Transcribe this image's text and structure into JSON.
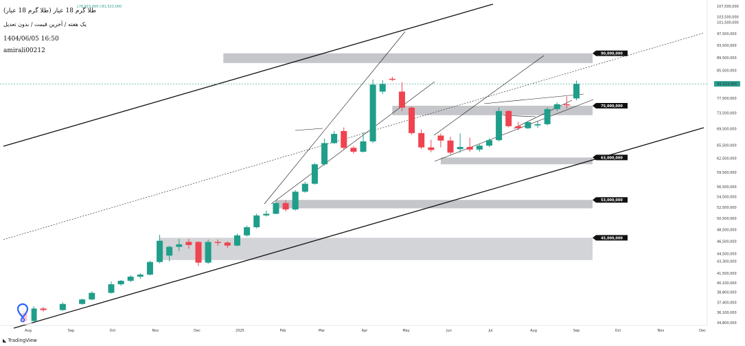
{
  "header": {
    "title": "طلا گرم 18 عیار (طلا گرم 18 عیار)",
    "ohlc": "L76,915,000 C81,523,000",
    "subtitle": "یک هفته / آخرین قیمت / بدون تعدیل",
    "datetime": "1404/06/05 16:50",
    "author": "amirali00212"
  },
  "brand": "TradingView",
  "colors": {
    "up": "#1f9e8a",
    "down": "#ef4350",
    "zone": "#9ea0a6",
    "line": "#111111",
    "price": "#2a9d8f"
  },
  "chart_data": {
    "type": "candlestick",
    "x_ticks": [
      "Aug",
      "Sep",
      "Oct",
      "Nov",
      "Dec",
      "2025",
      "Feb",
      "Mar",
      "Apr",
      "May",
      "Jun",
      "Jul",
      "Aug",
      "Sep",
      "Oct",
      "Nov",
      "Dec"
    ],
    "y_ticks": [
      "107,500,000",
      "103,500,000",
      "101,500,000",
      "97,500,000",
      "93,500,000",
      "89,500,000",
      "85,500,000",
      "81,523,000",
      "77,500,000",
      "73,500,000",
      "69,500,000",
      "65,500,000",
      "62,500,000",
      "59,500,000",
      "56,500,000",
      "54,500,000",
      "52,500,000",
      "50,500,000",
      "48,500,000",
      "46,500,000",
      "44,500,000",
      "43,300,000",
      "41,500,000",
      "40,100,000",
      "38,800,000",
      "37,400,000",
      "36,100,000",
      "34,800,000"
    ],
    "y_scale": "log",
    "last_price": 81523000,
    "levels": [
      {
        "label": "90,000,000",
        "low": 87800000,
        "high": 90900000
      },
      {
        "label": "75,000,000",
        "low": 72900000,
        "high": 75400000
      },
      {
        "label": "63,000,000",
        "low": 61200000,
        "high": 62700000
      },
      {
        "label": "53,000,000",
        "low": 52300000,
        "high": 53900000
      },
      {
        "label": "45,000,000",
        "low": 43500000,
        "high": 47100000
      }
    ],
    "candles": [
      {
        "date": "2024-07-29",
        "o": 36000000,
        "h": 36400000,
        "l": 34700000,
        "c": 35000000
      },
      {
        "date": "2024-08-05",
        "o": 35000000,
        "h": 36900000,
        "l": 34900000,
        "c": 36600000
      },
      {
        "date": "2024-08-12",
        "o": 36600000,
        "h": 36800000,
        "l": 36200000,
        "c": 36400000
      },
      {
        "date": "2024-08-26",
        "o": 36400000,
        "h": 37400000,
        "l": 36300000,
        "c": 37200000
      },
      {
        "date": "2024-09-09",
        "o": 37200000,
        "h": 37900000,
        "l": 37100000,
        "c": 37800000
      },
      {
        "date": "2024-09-16",
        "o": 37800000,
        "h": 38900000,
        "l": 37700000,
        "c": 38700000
      },
      {
        "date": "2024-09-30",
        "o": 38700000,
        "h": 40300000,
        "l": 38600000,
        "c": 39900000
      },
      {
        "date": "2024-10-07",
        "o": 39900000,
        "h": 40500000,
        "l": 39700000,
        "c": 40400000
      },
      {
        "date": "2024-10-14",
        "o": 40400000,
        "h": 41200000,
        "l": 40200000,
        "c": 41000000
      },
      {
        "date": "2024-10-21",
        "o": 41000000,
        "h": 41500000,
        "l": 40700000,
        "c": 41300000
      },
      {
        "date": "2024-10-28",
        "o": 41300000,
        "h": 43400000,
        "l": 41200000,
        "c": 43200000
      },
      {
        "date": "2024-11-04",
        "o": 43200000,
        "h": 47600000,
        "l": 43000000,
        "c": 46600000
      },
      {
        "date": "2024-11-11",
        "o": 44200000,
        "h": 45800000,
        "l": 43300000,
        "c": 45600000
      },
      {
        "date": "2024-11-18",
        "o": 45600000,
        "h": 46900000,
        "l": 44900000,
        "c": 46000000
      },
      {
        "date": "2024-11-25",
        "o": 46400000,
        "h": 46900000,
        "l": 45300000,
        "c": 45900000
      },
      {
        "date": "2024-12-02",
        "o": 46400000,
        "h": 46500000,
        "l": 42600000,
        "c": 43100000
      },
      {
        "date": "2024-12-09",
        "o": 43100000,
        "h": 46800000,
        "l": 42900000,
        "c": 46400000
      },
      {
        "date": "2024-12-16",
        "o": 46400000,
        "h": 46800000,
        "l": 45800000,
        "c": 46300000
      },
      {
        "date": "2024-12-23",
        "o": 46300000,
        "h": 46500000,
        "l": 45400000,
        "c": 45800000
      },
      {
        "date": "2024-12-30",
        "o": 45800000,
        "h": 47800000,
        "l": 45700000,
        "c": 47500000
      },
      {
        "date": "2025-01-06",
        "o": 47500000,
        "h": 49200000,
        "l": 47300000,
        "c": 48900000
      },
      {
        "date": "2025-01-13",
        "o": 48900000,
        "h": 51300000,
        "l": 48700000,
        "c": 51000000
      },
      {
        "date": "2025-01-20",
        "o": 51000000,
        "h": 51900000,
        "l": 50800000,
        "c": 51300000
      },
      {
        "date": "2025-01-27",
        "o": 51300000,
        "h": 53600000,
        "l": 51200000,
        "c": 53300000
      },
      {
        "date": "2025-02-03",
        "o": 53300000,
        "h": 53800000,
        "l": 51700000,
        "c": 52100000
      },
      {
        "date": "2025-02-10",
        "o": 52100000,
        "h": 55800000,
        "l": 51900000,
        "c": 55500000
      },
      {
        "date": "2025-02-17",
        "o": 55500000,
        "h": 57500000,
        "l": 55300000,
        "c": 57100000
      },
      {
        "date": "2025-02-24",
        "o": 57100000,
        "h": 61500000,
        "l": 56900000,
        "c": 61200000
      },
      {
        "date": "2025-03-03",
        "o": 61200000,
        "h": 67100000,
        "l": 60900000,
        "c": 66000000
      },
      {
        "date": "2025-03-10",
        "o": 66000000,
        "h": 68900000,
        "l": 65800000,
        "c": 68200000
      },
      {
        "date": "2025-03-17",
        "o": 68900000,
        "h": 69800000,
        "l": 64400000,
        "c": 64900000
      },
      {
        "date": "2025-03-24",
        "o": 64900000,
        "h": 65300000,
        "l": 63600000,
        "c": 64000000
      },
      {
        "date": "2025-03-31",
        "o": 64000000,
        "h": 68600000,
        "l": 63800000,
        "c": 66400000
      },
      {
        "date": "2025-04-07",
        "o": 66400000,
        "h": 82800000,
        "l": 66000000,
        "c": 81300000
      },
      {
        "date": "2025-04-14",
        "o": 79300000,
        "h": 82600000,
        "l": 78600000,
        "c": 81500000
      },
      {
        "date": "2025-04-21",
        "o": 83000000,
        "h": 83600000,
        "l": 82300000,
        "c": 82700000
      },
      {
        "date": "2025-04-28",
        "o": 79300000,
        "h": 82000000,
        "l": 74000000,
        "c": 74900000
      },
      {
        "date": "2025-05-05",
        "o": 74900000,
        "h": 75200000,
        "l": 68000000,
        "c": 68400000
      },
      {
        "date": "2025-05-12",
        "o": 68400000,
        "h": 69300000,
        "l": 64600000,
        "c": 65000000
      },
      {
        "date": "2025-05-19",
        "o": 65000000,
        "h": 66800000,
        "l": 63900000,
        "c": 64400000
      },
      {
        "date": "2025-05-26",
        "o": 67800000,
        "h": 68300000,
        "l": 65000000,
        "c": 66600000
      },
      {
        "date": "2025-06-02",
        "o": 66600000,
        "h": 67500000,
        "l": 63400000,
        "c": 63800000
      },
      {
        "date": "2025-06-09",
        "o": 64600000,
        "h": 68300000,
        "l": 63800000,
        "c": 65100000
      },
      {
        "date": "2025-06-16",
        "o": 65100000,
        "h": 67300000,
        "l": 64000000,
        "c": 64500000
      },
      {
        "date": "2025-06-23",
        "o": 64500000,
        "h": 65700000,
        "l": 64000000,
        "c": 65400000
      },
      {
        "date": "2025-06-30",
        "o": 65400000,
        "h": 67100000,
        "l": 65100000,
        "c": 66700000
      },
      {
        "date": "2025-07-07",
        "o": 66700000,
        "h": 74900000,
        "l": 66400000,
        "c": 74000000
      },
      {
        "date": "2025-07-14",
        "o": 74000000,
        "h": 74200000,
        "l": 69800000,
        "c": 70100000
      },
      {
        "date": "2025-07-21",
        "o": 70100000,
        "h": 71200000,
        "l": 69100000,
        "c": 69600000
      },
      {
        "date": "2025-07-28",
        "o": 69600000,
        "h": 71400000,
        "l": 69400000,
        "c": 71100000
      },
      {
        "date": "2025-08-04",
        "o": 70300000,
        "h": 71300000,
        "l": 69700000,
        "c": 70600000
      },
      {
        "date": "2025-08-11",
        "o": 70600000,
        "h": 75000000,
        "l": 70300000,
        "c": 74500000
      },
      {
        "date": "2025-08-18",
        "o": 74500000,
        "h": 76300000,
        "l": 74000000,
        "c": 75800000
      },
      {
        "date": "2025-08-25",
        "o": 75800000,
        "h": 77900000,
        "l": 74700000,
        "c": 75600000
      },
      {
        "date": "2025-09-01",
        "o": 77400000,
        "h": 82500000,
        "l": 76900000,
        "c": 81523000
      }
    ]
  }
}
